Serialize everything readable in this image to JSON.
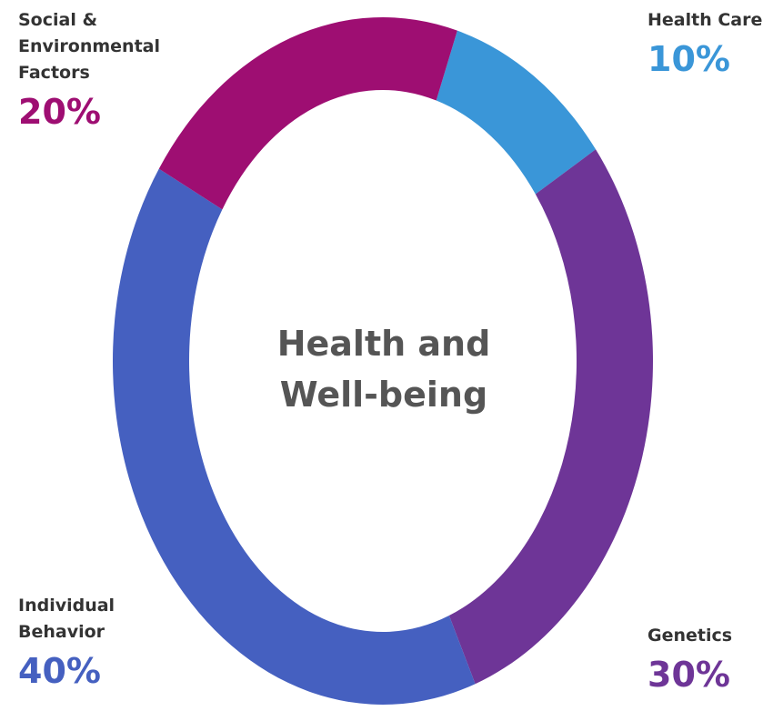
{
  "chart_data": {
    "type": "donut",
    "center_label": "Health and Well-being",
    "categories": [
      "Health Care",
      "Genetics",
      "Individual Behavior",
      "Social & Environmental Factors"
    ],
    "values": [
      10,
      30,
      40,
      20
    ],
    "value_labels": [
      "10%",
      "30%",
      "40%",
      "20%"
    ],
    "colors": [
      "#3a96d8",
      "#6e3597",
      "#4560c0",
      "#9e0e72"
    ]
  }
}
